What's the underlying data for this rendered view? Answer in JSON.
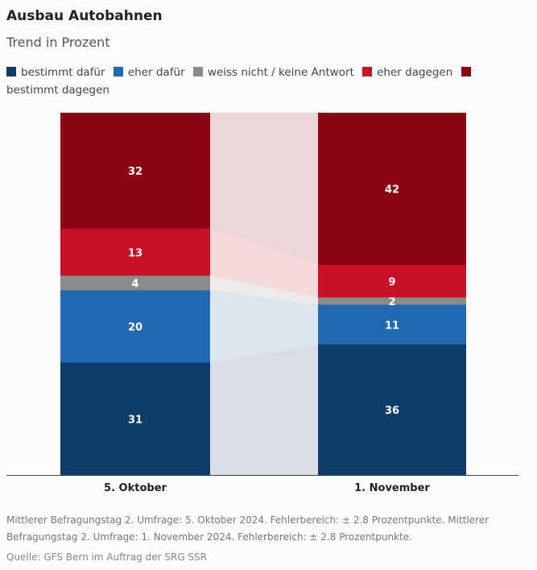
{
  "header": {
    "title": "Ausbau Autobahnen",
    "subtitle": "Trend in Prozent"
  },
  "footer": {
    "note": "Mittlerer Befragungstag 2. Umfrage: 5. Oktober 2024. Fehlerbereich: ± 2.8 Prozentpunkte. Mittlerer Befragungstag 2. Umfrage: 1. November 2024. Fehlerbereich: ± 2.8 Prozentpunkte.",
    "source": "Quelle: GFS Bern im Auftrag der SRG SSR"
  },
  "chart_data": {
    "type": "bar",
    "stacked": true,
    "title": "Ausbau Autobahnen",
    "subtitle": "Trend in Prozent",
    "categories": [
      "5. Oktober",
      "1. November"
    ],
    "ylim": [
      0,
      100
    ],
    "legend_placement": "top",
    "series": [
      {
        "name": "bestimmt dafür",
        "color": "#0f3d69",
        "values": [
          31,
          36
        ]
      },
      {
        "name": "eher dafür",
        "color": "#2169b1",
        "values": [
          20,
          11
        ]
      },
      {
        "name": "weiss nicht / keine Antwort",
        "color": "#8b8b8b",
        "values": [
          4,
          2
        ]
      },
      {
        "name": "eher dagegen",
        "color": "#c81127",
        "values": [
          13,
          9
        ]
      },
      {
        "name": "bestimmt dagegen",
        "color": "#8c0515",
        "values": [
          32,
          42
        ]
      }
    ]
  }
}
